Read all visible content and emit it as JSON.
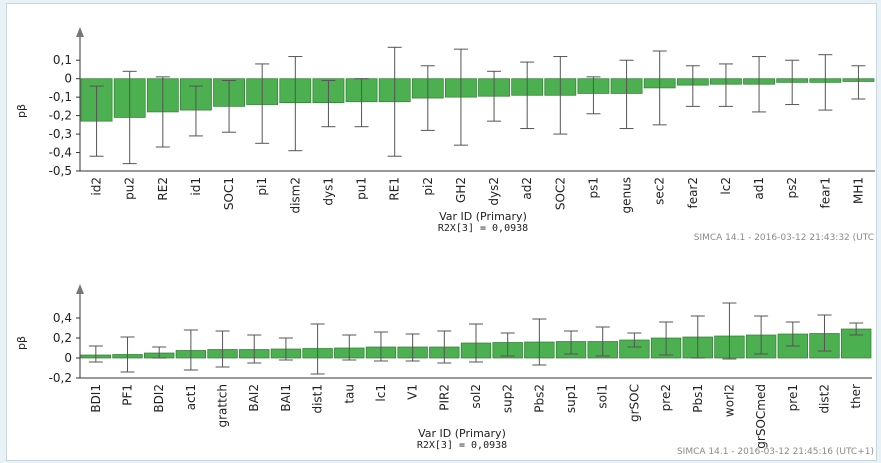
{
  "colors": {
    "bar": "#4caf50",
    "bar_edge": "#2e7d32",
    "error": "#555555",
    "axis": "#333333"
  },
  "chart_data": [
    {
      "type": "bar",
      "ylabel": "pβ",
      "xlabel": "Var ID (Primary)",
      "r2x": "R2X[3] = 0,0938",
      "stamp": "SIMCA 14.1 - 2016-03-12 21:43:32 (UTC",
      "ylim": [
        -0.5,
        0.15
      ],
      "yticks": [
        0.1,
        0,
        -0.1,
        -0.2,
        -0.3,
        -0.4,
        -0.5
      ],
      "ytick_labels": [
        "0,1",
        "0",
        "-0,1",
        "-0,2",
        "-0,3",
        "-0,4",
        "-0,5"
      ],
      "grid": false,
      "categories": [
        "id2",
        "pu2",
        "RE2",
        "id1",
        "SOC1",
        "pi1",
        "dism2",
        "dys1",
        "pu1",
        "RE1",
        "pi2",
        "GH2",
        "dys2",
        "ad2",
        "SOC2",
        "ps1",
        "genus",
        "sec2",
        "fear2",
        "lc2",
        "ad1",
        "ps2",
        "fear1",
        "MH1"
      ],
      "values": [
        -0.23,
        -0.21,
        -0.18,
        -0.17,
        -0.15,
        -0.14,
        -0.13,
        -0.13,
        -0.125,
        -0.125,
        -0.105,
        -0.1,
        -0.095,
        -0.09,
        -0.09,
        -0.08,
        -0.08,
        -0.05,
        -0.035,
        -0.03,
        -0.03,
        -0.02,
        -0.02,
        -0.015
      ],
      "err_low": [
        -0.42,
        -0.46,
        -0.37,
        -0.31,
        -0.29,
        -0.35,
        -0.39,
        -0.26,
        -0.26,
        -0.42,
        -0.28,
        -0.36,
        -0.23,
        -0.27,
        -0.3,
        -0.19,
        -0.27,
        -0.25,
        -0.15,
        -0.15,
        -0.18,
        -0.14,
        -0.17,
        -0.11
      ],
      "err_high": [
        -0.04,
        0.04,
        0.01,
        -0.04,
        -0.01,
        0.08,
        0.12,
        -0.01,
        0.0,
        0.17,
        0.07,
        0.16,
        0.04,
        0.09,
        0.12,
        0.01,
        0.1,
        0.15,
        0.07,
        0.08,
        0.12,
        0.1,
        0.13,
        0.07
      ]
    },
    {
      "type": "bar",
      "ylabel": "pβ",
      "xlabel": "Var ID (Primary)",
      "r2x": "R2X[3] = 0,0938",
      "stamp": "SIMCA 14.1 - 2016-03-12 21:45:16 (UTC+1)",
      "ylim": [
        -0.2,
        0.5
      ],
      "yticks": [
        0.4,
        0.2,
        0,
        -0.2
      ],
      "ytick_labels": [
        "0,4",
        "0,2",
        "0",
        "-0,2"
      ],
      "grid": false,
      "categories": [
        "BDI1",
        "PF1",
        "BDI2",
        "act1",
        "grattch",
        "BAI2",
        "BAI1",
        "dist1",
        "tau",
        "lc1",
        "V1",
        "PIR2",
        "sol2",
        "sup2",
        "Pbs2",
        "sup1",
        "sol1",
        "grSOC",
        "pre2",
        "Pbs1",
        "worl2",
        "grSOCmed",
        "pre1",
        "dist2",
        "ther"
      ],
      "values": [
        0.03,
        0.035,
        0.05,
        0.075,
        0.085,
        0.085,
        0.09,
        0.095,
        0.1,
        0.11,
        0.11,
        0.11,
        0.15,
        0.155,
        0.16,
        0.165,
        0.165,
        0.18,
        0.2,
        0.21,
        0.22,
        0.23,
        0.24,
        0.245,
        0.29
      ],
      "err_low": [
        -0.04,
        -0.14,
        0.0,
        -0.12,
        -0.09,
        -0.05,
        -0.02,
        -0.16,
        -0.02,
        -0.03,
        -0.03,
        -0.05,
        -0.04,
        0.02,
        -0.07,
        0.04,
        0.02,
        0.11,
        0.03,
        0.0,
        -0.01,
        0.04,
        0.12,
        0.07,
        0.23
      ],
      "err_high": [
        0.12,
        0.21,
        0.11,
        0.28,
        0.27,
        0.23,
        0.2,
        0.34,
        0.23,
        0.26,
        0.24,
        0.27,
        0.34,
        0.25,
        0.39,
        0.27,
        0.31,
        0.25,
        0.36,
        0.42,
        0.55,
        0.42,
        0.36,
        0.43,
        0.35
      ]
    }
  ]
}
